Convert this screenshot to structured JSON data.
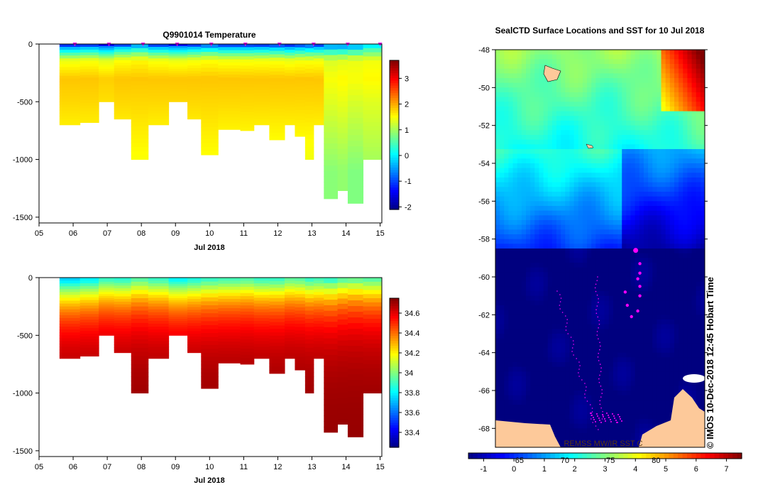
{
  "chart_data": [
    {
      "id": "temperature_section",
      "type": "heatmap",
      "title": "Q9901014  Temperature",
      "xlabel": "Jul 2018",
      "xticks": [
        "05",
        "06",
        "07",
        "08",
        "09",
        "10",
        "11",
        "12",
        "13",
        "14",
        "15"
      ],
      "xlim": [
        5,
        15.05
      ],
      "ylim": [
        -1550,
        0
      ],
      "yticks": [
        0,
        -500,
        -1000,
        -1500
      ],
      "ytick_labels": [
        "0",
        "-500",
        "-1000",
        "-1500"
      ],
      "colorbar": {
        "min": -2.1,
        "max": 3.7,
        "ticks": [
          3,
          2,
          1,
          0,
          -1,
          -2
        ],
        "labels": [
          "3",
          "2",
          "1",
          "0",
          "-1",
          "-2"
        ],
        "colors": [
          "#00007f",
          "#0000ff",
          "#0080ff",
          "#00ffff",
          "#80ff80",
          "#ffff00",
          "#ff8000",
          "#ff0000",
          "#800000"
        ]
      },
      "profile_markers": [
        6.05,
        7.05,
        8.05,
        9.05,
        10.05,
        11.05,
        12.05,
        13.05,
        14.05,
        15.0
      ],
      "profiles": [
        {
          "x0": 5.6,
          "x1": 6.2,
          "depth": 700,
          "t": [
            -1.9,
            -0.6,
            0.6,
            1.4,
            1.85,
            1.75,
            1.55,
            1.4
          ]
        },
        {
          "x0": 6.2,
          "x1": 6.75,
          "depth": 680,
          "t": [
            -1.8,
            -0.5,
            0.7,
            1.45,
            1.85,
            1.75,
            1.55,
            1.4
          ]
        },
        {
          "x0": 6.75,
          "x1": 7.2,
          "depth": 500,
          "t": [
            -1.9,
            -0.7,
            0.5,
            1.35,
            1.8,
            1.7,
            1.55,
            1.4
          ]
        },
        {
          "x0": 7.2,
          "x1": 7.7,
          "depth": 650,
          "t": [
            -1.8,
            -0.4,
            0.8,
            1.5,
            1.85,
            1.75,
            1.55,
            1.4
          ]
        },
        {
          "x0": 7.7,
          "x1": 8.2,
          "depth": 1000,
          "t": [
            -1.6,
            -0.2,
            0.9,
            1.55,
            1.85,
            1.75,
            1.6,
            1.45
          ]
        },
        {
          "x0": 8.2,
          "x1": 8.8,
          "depth": 700,
          "t": [
            -1.8,
            -0.5,
            0.7,
            1.45,
            1.85,
            1.75,
            1.55,
            1.4
          ]
        },
        {
          "x0": 8.8,
          "x1": 9.35,
          "depth": 500,
          "t": [
            -1.9,
            -0.6,
            0.6,
            1.4,
            1.85,
            1.75,
            1.55,
            1.4
          ]
        },
        {
          "x0": 9.35,
          "x1": 9.75,
          "depth": 650,
          "t": [
            -1.8,
            -0.5,
            0.7,
            1.45,
            1.85,
            1.75,
            1.55,
            1.4
          ]
        },
        {
          "x0": 9.75,
          "x1": 10.25,
          "depth": 960,
          "t": [
            -1.8,
            -0.4,
            0.8,
            1.5,
            1.85,
            1.75,
            1.6,
            1.45
          ]
        },
        {
          "x0": 10.25,
          "x1": 10.9,
          "depth": 740,
          "t": [
            -1.85,
            -0.5,
            0.7,
            1.45,
            1.85,
            1.75,
            1.55,
            1.4
          ]
        },
        {
          "x0": 10.9,
          "x1": 11.3,
          "depth": 750,
          "t": [
            -1.85,
            -0.5,
            0.7,
            1.45,
            1.85,
            1.75,
            1.55,
            1.4
          ]
        },
        {
          "x0": 11.3,
          "x1": 11.75,
          "depth": 700,
          "t": [
            -1.85,
            -0.5,
            0.7,
            1.45,
            1.85,
            1.75,
            1.55,
            1.4
          ]
        },
        {
          "x0": 11.75,
          "x1": 12.2,
          "depth": 830,
          "t": [
            -1.8,
            -0.5,
            0.7,
            1.45,
            1.85,
            1.75,
            1.55,
            1.4
          ]
        },
        {
          "x0": 12.2,
          "x1": 12.5,
          "depth": 700,
          "t": [
            -1.9,
            -0.6,
            0.6,
            1.4,
            1.85,
            1.75,
            1.55,
            1.4
          ]
        },
        {
          "x0": 12.5,
          "x1": 12.8,
          "depth": 800,
          "t": [
            -1.8,
            -0.5,
            0.7,
            1.45,
            1.85,
            1.75,
            1.55,
            1.4
          ]
        },
        {
          "x0": 12.8,
          "x1": 13.05,
          "depth": 1000,
          "t": [
            -1.8,
            -0.5,
            0.7,
            1.45,
            1.85,
            1.75,
            1.55,
            1.4
          ]
        },
        {
          "x0": 13.05,
          "x1": 13.35,
          "depth": 700,
          "t": [
            -1.8,
            -0.5,
            0.7,
            1.45,
            1.85,
            1.75,
            1.55,
            1.4
          ]
        },
        {
          "x0": 13.35,
          "x1": 13.75,
          "depth": 1340,
          "t": [
            -1.8,
            -0.4,
            0.7,
            1.3,
            1.5,
            1.35,
            1.1,
            0.85
          ]
        },
        {
          "x0": 13.75,
          "x1": 14.05,
          "depth": 1270,
          "t": [
            -1.9,
            -0.4,
            0.7,
            1.35,
            1.55,
            1.4,
            1.15,
            0.9
          ]
        },
        {
          "x0": 14.05,
          "x1": 14.5,
          "depth": 1380,
          "t": [
            -1.7,
            -0.3,
            0.8,
            1.4,
            1.5,
            1.3,
            1.05,
            0.8
          ]
        },
        {
          "x0": 14.5,
          "x1": 15.05,
          "depth": 1000,
          "t": [
            -1.2,
            0.2,
            0.9,
            1.45,
            1.55,
            1.35,
            1.15,
            0.95
          ]
        }
      ]
    },
    {
      "id": "salinity_section",
      "type": "heatmap",
      "title": "",
      "xlabel": "Jul 2018",
      "xticks": [
        "05",
        "06",
        "07",
        "08",
        "09",
        "10",
        "11",
        "12",
        "13",
        "14",
        "15"
      ],
      "xlim": [
        5,
        15.05
      ],
      "ylim": [
        -1550,
        0
      ],
      "yticks": [
        0,
        -500,
        -1000,
        -1500
      ],
      "ytick_labels": [
        "0",
        "-500",
        "-1000",
        "-1500"
      ],
      "colorbar": {
        "min": 33.25,
        "max": 34.75,
        "ticks": [
          34.6,
          34.4,
          34.2,
          34,
          33.8,
          33.6,
          33.4
        ],
        "labels": [
          "34.6",
          "34.4",
          "34.2",
          "34",
          "33.8",
          "33.6",
          "33.4"
        ],
        "colors": [
          "#00007f",
          "#0000ff",
          "#0080ff",
          "#00ffff",
          "#80ff80",
          "#ffff00",
          "#ff8000",
          "#ff0000",
          "#800000"
        ]
      },
      "profile_depths": [
        700,
        680,
        500,
        650,
        1000,
        700,
        500,
        650,
        960,
        740,
        750,
        700,
        830,
        700,
        800,
        1000,
        700,
        1340,
        1270,
        1380,
        1000
      ],
      "surface_salinity": [
        33.75,
        33.8,
        33.9,
        33.88,
        33.95,
        33.9,
        33.82,
        33.86,
        33.9,
        33.92,
        33.94,
        33.9,
        33.9,
        33.96,
        33.95,
        33.9,
        33.92,
        33.9,
        33.96,
        33.98,
        33.95
      ],
      "deep_salinity": 34.72
    },
    {
      "id": "sst_map",
      "type": "heatmap",
      "title": "SealCTD Surface Locations and SST for 10 Jul 2018",
      "ylabel_ticks": [
        "-48",
        "-50",
        "-52",
        "-54",
        "-56",
        "-58",
        "-60",
        "-62",
        "-64",
        "-66",
        "-68"
      ],
      "ylim": [
        -69,
        -48
      ],
      "colorbar": {
        "min": -1.5,
        "max": 7.5,
        "ticks": [
          -1,
          0,
          1,
          2,
          3,
          4,
          5,
          6,
          7
        ],
        "labels": [
          "-1",
          "0",
          "1",
          "2",
          "3",
          "4",
          "5",
          "6",
          "7"
        ],
        "overlay_labels": [
          "65",
          "70",
          "75",
          "80"
        ],
        "colors": [
          "#00007f",
          "#0000ff",
          "#0080ff",
          "#00ffff",
          "#80ff80",
          "#ffff00",
          "#ff8000",
          "#ff0000",
          "#800000"
        ]
      },
      "footer_label": "REMSS MW/IR SST C",
      "credit": "© IMOS 10-Dec-2018 12:45 Hobart Time",
      "profile_positions_lat": [
        -58.6,
        -59.3,
        -59.8,
        -60.1,
        -60.5,
        -60.8,
        -61.0,
        -61.5,
        -61.8,
        -62.1
      ],
      "profile_positions_frac": [
        0.67,
        0.69,
        0.69,
        0.68,
        0.69,
        0.62,
        0.69,
        0.63,
        0.68,
        0.65
      ]
    }
  ],
  "labels": {
    "temp_title": "Q9901014  Temperature",
    "map_title": "SealCTD Surface Locations and SST for 10 Jul 2018",
    "month_label": "Jul 2018",
    "sst_footer": "REMSS MW/IR SST C",
    "credit": "© IMOS 10-Dec-2018 12:45 Hobart Time"
  }
}
